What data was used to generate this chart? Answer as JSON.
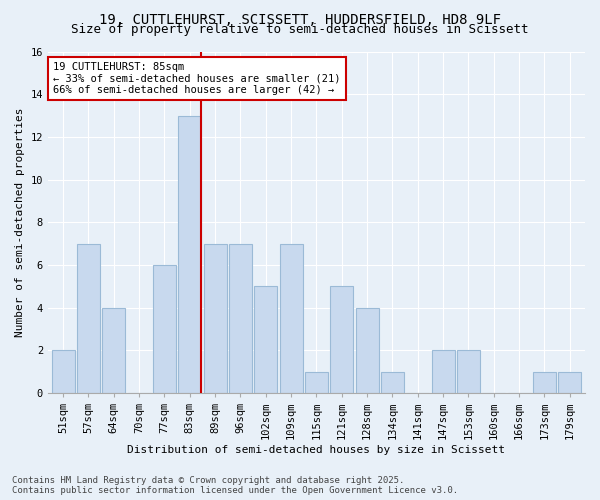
{
  "title": "19, CUTTLEHURST, SCISSETT, HUDDERSFIELD, HD8 9LF",
  "subtitle": "Size of property relative to semi-detached houses in Scissett",
  "xlabel": "Distribution of semi-detached houses by size in Scissett",
  "ylabel": "Number of semi-detached properties",
  "categories": [
    "51sqm",
    "57sqm",
    "64sqm",
    "70sqm",
    "77sqm",
    "83sqm",
    "89sqm",
    "96sqm",
    "102sqm",
    "109sqm",
    "115sqm",
    "121sqm",
    "128sqm",
    "134sqm",
    "141sqm",
    "147sqm",
    "153sqm",
    "160sqm",
    "166sqm",
    "173sqm",
    "179sqm"
  ],
  "values": [
    2,
    7,
    4,
    0,
    6,
    13,
    7,
    7,
    5,
    7,
    1,
    5,
    4,
    1,
    0,
    2,
    2,
    0,
    0,
    1,
    1
  ],
  "bar_color": "#c8d9ee",
  "bar_edge_color": "#9bbad6",
  "property_bin_index": 5,
  "annotation_title": "19 CUTTLEHURST: 85sqm",
  "annotation_line1": "← 33% of semi-detached houses are smaller (21)",
  "annotation_line2": "66% of semi-detached houses are larger (42) →",
  "vline_color": "#cc0000",
  "annotation_box_edge_color": "#cc0000",
  "ylim": [
    0,
    16
  ],
  "yticks": [
    0,
    2,
    4,
    6,
    8,
    10,
    12,
    14,
    16
  ],
  "footer_line1": "Contains HM Land Registry data © Crown copyright and database right 2025.",
  "footer_line2": "Contains public sector information licensed under the Open Government Licence v3.0.",
  "background_color": "#e8f0f8",
  "grid_color": "#ffffff",
  "title_fontsize": 10,
  "subtitle_fontsize": 9,
  "axis_label_fontsize": 8,
  "tick_fontsize": 7.5,
  "annotation_fontsize": 7.5,
  "footer_fontsize": 6.5
}
